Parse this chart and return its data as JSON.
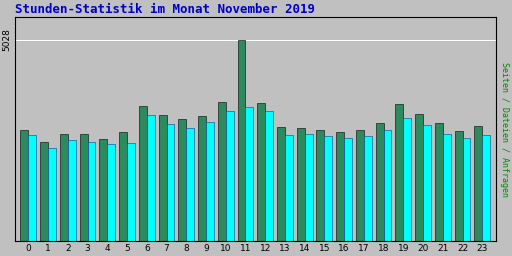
{
  "title": "Stunden-Statistik im Monat November 2019",
  "ylabel_right": "Seiten / Dateien / Anfragen",
  "ytick_label": "5028",
  "categories": [
    0,
    1,
    2,
    3,
    4,
    5,
    6,
    7,
    8,
    9,
    10,
    11,
    12,
    13,
    14,
    15,
    16,
    17,
    18,
    19,
    20,
    21,
    22,
    23
  ],
  "series_green": [
    2780,
    2480,
    2680,
    2680,
    2560,
    2720,
    3380,
    3150,
    3060,
    3120,
    3480,
    5028,
    3450,
    2860,
    2830,
    2770,
    2720,
    2770,
    2960,
    3420,
    3170,
    2960,
    2760,
    2870
  ],
  "series_cyan": [
    2650,
    2320,
    2520,
    2470,
    2430,
    2460,
    3160,
    2920,
    2820,
    2970,
    3260,
    3360,
    3250,
    2660,
    2670,
    2620,
    2570,
    2620,
    2770,
    3070,
    2910,
    2670,
    2570,
    2660
  ],
  "color_green": "#2d8a5e",
  "color_cyan": "#00ffff",
  "bg_color": "#c0c0c0",
  "title_color": "#0000cc",
  "right_label_color": "#008800",
  "title_fontsize": 9,
  "bar_width": 0.4,
  "ymax": 5600,
  "ymin": 0,
  "figwidth": 5.12,
  "figheight": 2.56,
  "dpi": 100
}
